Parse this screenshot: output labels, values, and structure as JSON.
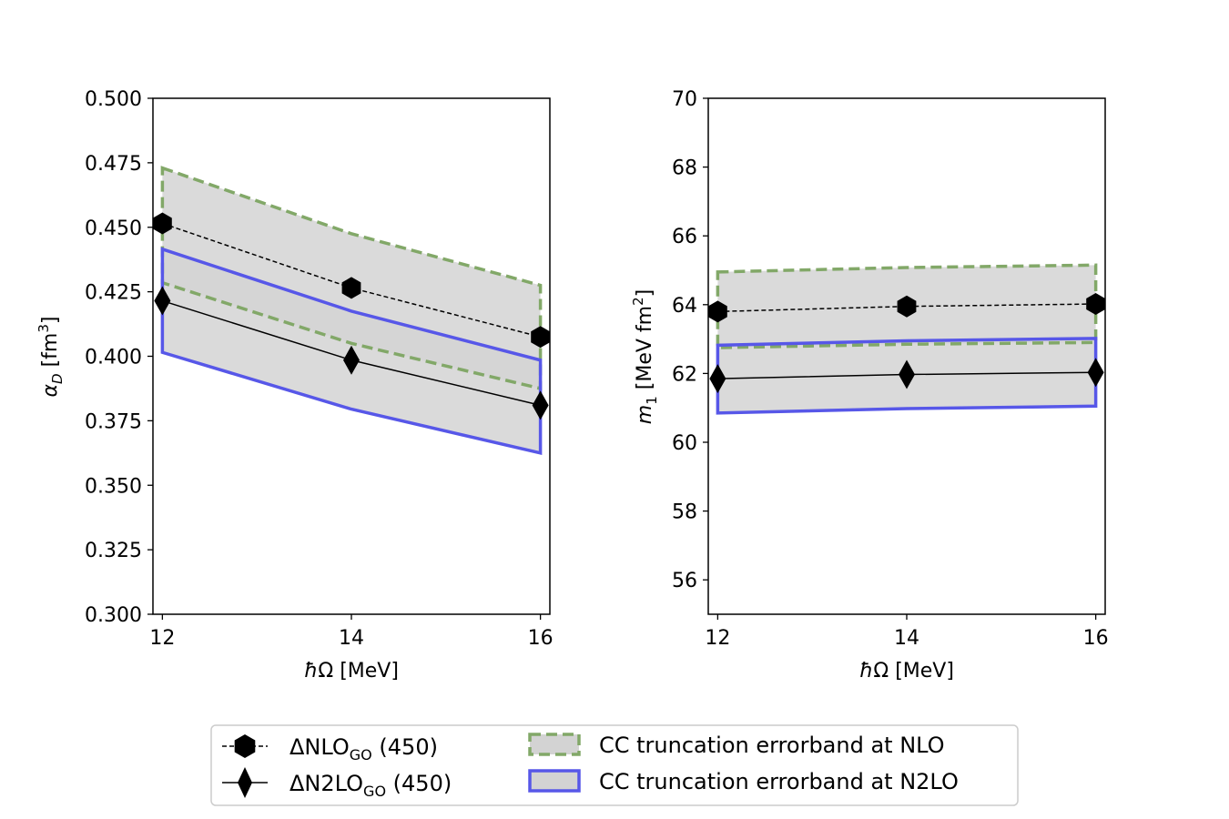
{
  "chart_data": [
    {
      "type": "line",
      "x": [
        12,
        14,
        16
      ],
      "xlabel_unit": "[MeV]",
      "ylabel_unit": "[fm",
      "ylabel_sup": "3",
      "ylabel_close": "]",
      "xlim": [
        11.9,
        16.1
      ],
      "ylim": [
        0.3,
        0.5
      ],
      "xticks": [
        12,
        14,
        16
      ],
      "xtick_labels": [
        "12",
        "14",
        "16"
      ],
      "yticks": [
        0.3,
        0.325,
        0.35,
        0.375,
        0.4,
        0.425,
        0.45,
        0.475,
        0.5
      ],
      "ytick_labels": [
        "0.300",
        "0.325",
        "0.350",
        "0.375",
        "0.400",
        "0.425",
        "0.450",
        "0.475",
        "0.500"
      ],
      "series": [
        {
          "name": "NLO",
          "values": [
            0.4515,
            0.4265,
            0.4075
          ]
        },
        {
          "name": "N2LO",
          "values": [
            0.4215,
            0.3985,
            0.381
          ]
        }
      ],
      "bands": [
        {
          "name": "NLO",
          "lower": [
            0.4285,
            0.405,
            0.3875
          ],
          "upper": [
            0.473,
            0.4475,
            0.4275
          ]
        },
        {
          "name": "N2LO",
          "lower": [
            0.4015,
            0.3795,
            0.3625
          ],
          "upper": [
            0.4415,
            0.4175,
            0.3985
          ]
        }
      ]
    },
    {
      "type": "line",
      "x": [
        12,
        14,
        16
      ],
      "xlabel_unit": "[MeV]",
      "ylabel_unit": "[MeV fm",
      "ylabel_sup": "2",
      "ylabel_close": "]",
      "xlim": [
        11.9,
        16.1
      ],
      "ylim": [
        55,
        70
      ],
      "xticks": [
        12,
        14,
        16
      ],
      "xtick_labels": [
        "12",
        "14",
        "16"
      ],
      "yticks": [
        56,
        58,
        60,
        62,
        64,
        66,
        68,
        70
      ],
      "ytick_labels": [
        "56",
        "58",
        "60",
        "62",
        "64",
        "66",
        "68",
        "70"
      ],
      "series": [
        {
          "name": "NLO",
          "values": [
            63.8,
            63.95,
            64.02
          ]
        },
        {
          "name": "N2LO",
          "values": [
            61.85,
            61.97,
            62.03
          ]
        }
      ],
      "bands": [
        {
          "name": "NLO",
          "lower": [
            62.75,
            62.85,
            62.9
          ],
          "upper": [
            64.95,
            65.08,
            65.15
          ]
        },
        {
          "name": "N2LO",
          "lower": [
            60.85,
            60.98,
            61.05
          ],
          "upper": [
            62.82,
            62.95,
            63.02
          ]
        }
      ]
    }
  ],
  "legend": {
    "entries": [
      {
        "prefix": "ΔNLO",
        "sub": "GO",
        "suffix": " (450)"
      },
      {
        "prefix": "ΔN2LO",
        "sub": "GO",
        "suffix": " (450)"
      },
      {
        "label": "CC truncation errorband at NLO"
      },
      {
        "label": "CC truncation errorband at N2LO"
      }
    ]
  },
  "colors": {
    "band_fill": "#d3d3d3",
    "nlo_edge": "#82a868",
    "n2lo_edge": "#5757e8",
    "line": "#000000"
  }
}
